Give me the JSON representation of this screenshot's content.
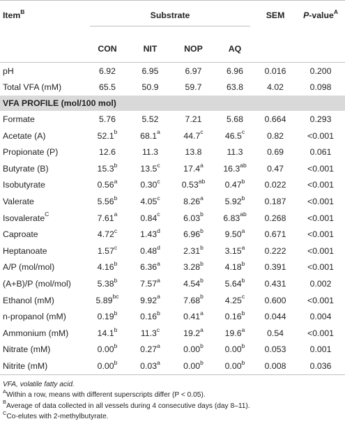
{
  "header": {
    "item": "Item",
    "item_sup": "B",
    "substrate": "Substrate",
    "sem": "SEM",
    "pvalue_p": "P",
    "pvalue_rest": "-value",
    "pvalue_sup": "A",
    "columns": [
      "CON",
      "NIT",
      "NOP",
      "AQ"
    ]
  },
  "top_rows": [
    {
      "item": "pH",
      "sup": "",
      "v": [
        [
          "6.92",
          ""
        ],
        [
          "6.95",
          ""
        ],
        [
          "6.97",
          ""
        ],
        [
          "6.96",
          ""
        ]
      ],
      "sem": "0.016",
      "p": "0.200"
    },
    {
      "item": "Total VFA (mM)",
      "sup": "",
      "v": [
        [
          "65.5",
          ""
        ],
        [
          "50.9",
          ""
        ],
        [
          "59.7",
          ""
        ],
        [
          "63.8",
          ""
        ]
      ],
      "sem": "4.02",
      "p": "0.098"
    }
  ],
  "section_label": "VFA PROFILE (mol/100 mol)",
  "rows": [
    {
      "item": "Formate",
      "sup": "",
      "v": [
        [
          "5.76",
          ""
        ],
        [
          "5.52",
          ""
        ],
        [
          "7.21",
          ""
        ],
        [
          "5.68",
          ""
        ]
      ],
      "sem": "0.664",
      "p": "0.293"
    },
    {
      "item": "Acetate (A)",
      "sup": "",
      "v": [
        [
          "52.1",
          "b"
        ],
        [
          "68.1",
          "a"
        ],
        [
          "44.7",
          "c"
        ],
        [
          "46.5",
          "c"
        ]
      ],
      "sem": "0.82",
      "p": "<0.001"
    },
    {
      "item": "Propionate (P)",
      "sup": "",
      "v": [
        [
          "12.6",
          ""
        ],
        [
          "11.3",
          ""
        ],
        [
          "13.8",
          ""
        ],
        [
          "11.3",
          ""
        ]
      ],
      "sem": "0.69",
      "p": "0.061"
    },
    {
      "item": "Butyrate (B)",
      "sup": "",
      "v": [
        [
          "15.3",
          "b"
        ],
        [
          "13.5",
          "c"
        ],
        [
          "17.4",
          "a"
        ],
        [
          "16.3",
          "ab"
        ]
      ],
      "sem": "0.47",
      "p": "<0.001"
    },
    {
      "item": "Isobutyrate",
      "sup": "",
      "v": [
        [
          "0.56",
          "a"
        ],
        [
          "0.30",
          "c"
        ],
        [
          "0.53",
          "ab"
        ],
        [
          "0.47",
          "b"
        ]
      ],
      "sem": "0.022",
      "p": "<0.001"
    },
    {
      "item": "Valerate",
      "sup": "",
      "v": [
        [
          "5.56",
          "b"
        ],
        [
          "4.05",
          "c"
        ],
        [
          "8.26",
          "a"
        ],
        [
          "5.92",
          "b"
        ]
      ],
      "sem": "0.187",
      "p": "<0.001"
    },
    {
      "item": "Isovalerate",
      "sup": "C",
      "v": [
        [
          "7.61",
          "a"
        ],
        [
          "0.84",
          "c"
        ],
        [
          "6.03",
          "b"
        ],
        [
          "6.83",
          "ab"
        ]
      ],
      "sem": "0.268",
      "p": "<0.001"
    },
    {
      "item": "Caproate",
      "sup": "",
      "v": [
        [
          "4.72",
          "c"
        ],
        [
          "1.43",
          "d"
        ],
        [
          "6.96",
          "b"
        ],
        [
          "9.50",
          "a"
        ]
      ],
      "sem": "0.671",
      "p": "<0.001"
    },
    {
      "item": "Heptanoate",
      "sup": "",
      "v": [
        [
          "1.57",
          "c"
        ],
        [
          "0.48",
          "d"
        ],
        [
          "2.31",
          "b"
        ],
        [
          "3.15",
          "a"
        ]
      ],
      "sem": "0.222",
      "p": "<0.001"
    },
    {
      "item": "A/P (mol/mol)",
      "sup": "",
      "v": [
        [
          "4.16",
          "b"
        ],
        [
          "6.36",
          "a"
        ],
        [
          "3.28",
          "b"
        ],
        [
          "4.18",
          "b"
        ]
      ],
      "sem": "0.391",
      "p": "<0.001"
    },
    {
      "item": "(A+B)/P (mol/mol)",
      "sup": "",
      "v": [
        [
          "5.38",
          "b"
        ],
        [
          "7.57",
          "a"
        ],
        [
          "4.54",
          "b"
        ],
        [
          "5.64",
          "b"
        ]
      ],
      "sem": "0.431",
      "p": "0.002"
    },
    {
      "item": "Ethanol (mM)",
      "sup": "",
      "v": [
        [
          "5.89",
          "bc"
        ],
        [
          "9.92",
          "a"
        ],
        [
          "7.68",
          "b"
        ],
        [
          "4.25",
          "c"
        ]
      ],
      "sem": "0.600",
      "p": "<0.001"
    },
    {
      "item": "n-propanol (mM)",
      "sup": "",
      "v": [
        [
          "0.19",
          "b"
        ],
        [
          "0.16",
          "b"
        ],
        [
          "0.41",
          "a"
        ],
        [
          "0.16",
          "b"
        ]
      ],
      "sem": "0.044",
      "p": "0.004"
    },
    {
      "item": "Ammonium (mM)",
      "sup": "",
      "v": [
        [
          "14.1",
          "b"
        ],
        [
          "11.3",
          "c"
        ],
        [
          "19.2",
          "a"
        ],
        [
          "19.6",
          "a"
        ]
      ],
      "sem": "0.54",
      "p": "<0.001"
    },
    {
      "item": "Nitrate (mM)",
      "sup": "",
      "v": [
        [
          "0.00",
          "b"
        ],
        [
          "0.27",
          "a"
        ],
        [
          "0.00",
          "b"
        ],
        [
          "0.00",
          "b"
        ]
      ],
      "sem": "0.053",
      "p": "0.001"
    },
    {
      "item": "Nitrite (mM)",
      "sup": "",
      "v": [
        [
          "0.00",
          "b"
        ],
        [
          "0.03",
          "a"
        ],
        [
          "0.00",
          "b"
        ],
        [
          "0.00",
          "b"
        ]
      ],
      "sem": "0.008",
      "p": "0.036"
    }
  ],
  "notes": {
    "abbr": "VFA, volatile fatty acid.",
    "a_sup": "A",
    "a_text": "Within a row, means with different superscripts differ (P < 0.05).",
    "b_sup": "B",
    "b_text": "Average of data collected in all vessels during 4 consecutive days (day 8–11).",
    "c_sup": "C",
    "c_text": "Co-elutes with 2-methylbutyrate."
  },
  "colors": {
    "section_bg": "#d9d9d9",
    "rule": "#bfbfbf",
    "text": "#222222"
  }
}
